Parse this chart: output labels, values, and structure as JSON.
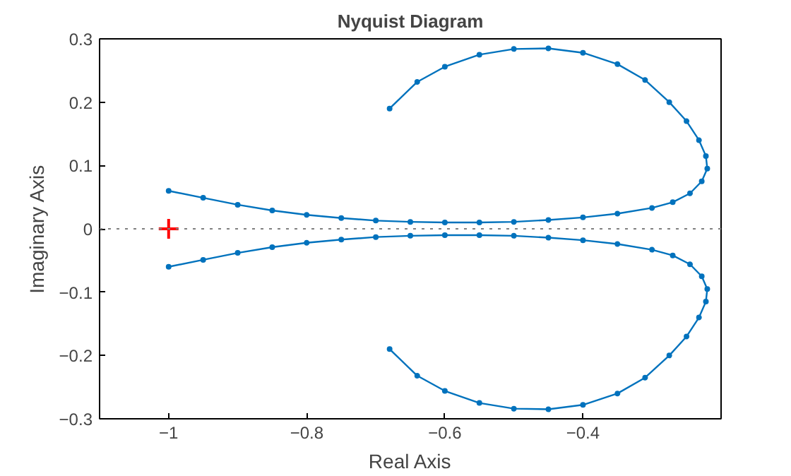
{
  "chart_data": {
    "type": "line",
    "title": "Nyquist Diagram",
    "xlabel": "Real Axis",
    "ylabel": "Imaginary Axis",
    "xlim": [
      -1.1,
      -0.2
    ],
    "ylim": [
      -0.3,
      0.3
    ],
    "xticks": [
      -1,
      -0.8,
      -0.6,
      -0.4
    ],
    "yticks": [
      -0.3,
      -0.2,
      -0.1,
      0,
      0.1,
      0.2,
      0.3
    ],
    "grid": false,
    "marker": "circle",
    "line_style": "solid",
    "ref_lines": [
      {
        "axis": "y",
        "value": 0,
        "color": "#808080",
        "line_style": "dotted"
      }
    ],
    "series": [
      {
        "color": "#0072bd",
        "x": [
          -1,
          -0.95,
          -0.9,
          -0.85,
          -0.8,
          -0.75,
          -0.7,
          -0.65,
          -0.6,
          -0.55,
          -0.5,
          -0.45,
          -0.4,
          -0.35,
          -0.3,
          -0.27,
          -0.245,
          -0.228,
          -0.22,
          -0.222,
          -0.232,
          -0.25,
          -0.275,
          -0.31,
          -0.35,
          -0.4,
          -0.45,
          -0.5,
          -0.55,
          -0.6,
          -0.64,
          -0.68
        ],
        "values": [
          0.06,
          0.049,
          0.038,
          0.029,
          0.022,
          0.017,
          0.013,
          0.011,
          0.01,
          0.01,
          0.011,
          0.014,
          0.018,
          0.024,
          0.033,
          0.042,
          0.056,
          0.075,
          0.095,
          0.115,
          0.14,
          0.17,
          0.2,
          0.235,
          0.26,
          0.278,
          0.285,
          0.284,
          0.275,
          0.256,
          0.232,
          0.19
        ]
      },
      {
        "color": "#0072bd",
        "x": [
          -1,
          -0.95,
          -0.9,
          -0.85,
          -0.8,
          -0.75,
          -0.7,
          -0.65,
          -0.6,
          -0.55,
          -0.5,
          -0.45,
          -0.4,
          -0.35,
          -0.3,
          -0.27,
          -0.245,
          -0.228,
          -0.22,
          -0.222,
          -0.232,
          -0.25,
          -0.275,
          -0.31,
          -0.35,
          -0.4,
          -0.45,
          -0.5,
          -0.55,
          -0.6,
          -0.64,
          -0.68
        ],
        "values": [
          -0.06,
          -0.049,
          -0.038,
          -0.029,
          -0.022,
          -0.017,
          -0.013,
          -0.011,
          -0.01,
          -0.01,
          -0.011,
          -0.014,
          -0.018,
          -0.024,
          -0.033,
          -0.042,
          -0.056,
          -0.075,
          -0.095,
          -0.115,
          -0.14,
          -0.17,
          -0.2,
          -0.235,
          -0.26,
          -0.278,
          -0.285,
          -0.284,
          -0.275,
          -0.256,
          -0.232,
          -0.19
        ]
      },
      {
        "type": "scatter",
        "marker": "cross",
        "color": "#ff0000",
        "x": [
          -1
        ],
        "values": [
          0
        ]
      }
    ]
  }
}
